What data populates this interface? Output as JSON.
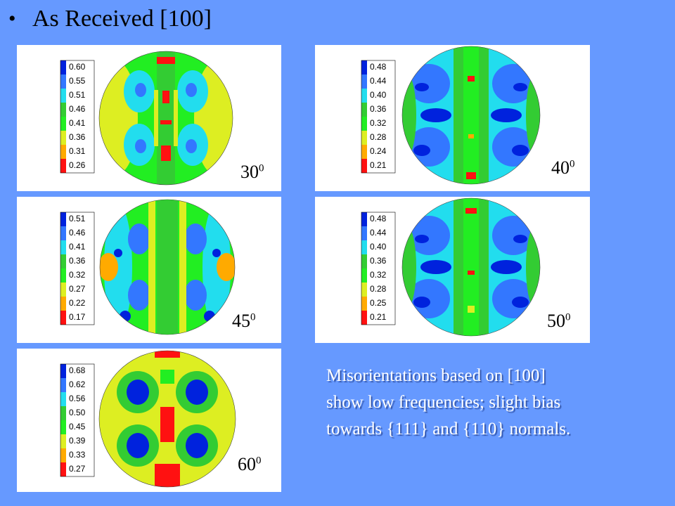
{
  "slide": {
    "bullet": "•",
    "title": "As Received [100]",
    "caption_lines": [
      "Misorientations based on [100]",
      "show low frequencies; slight bias",
      "towards {111} and {110} normals."
    ]
  },
  "colors": {
    "background": "#6699ff",
    "scale": [
      "#0022dd",
      "#3377ff",
      "#22ddee",
      "#33cc33",
      "#22ee22",
      "#ddee22",
      "#ffaa00",
      "#ff1111"
    ]
  },
  "plots": [
    {
      "id": "p30",
      "angle": "30",
      "sup": "0",
      "legend": [
        "0.60",
        "0.55",
        "0.51",
        "0.46",
        "0.41",
        "0.36",
        "0.31",
        "0.26"
      ]
    },
    {
      "id": "p40",
      "angle": "40",
      "sup": "0",
      "legend": [
        "0.48",
        "0.44",
        "0.40",
        "0.36",
        "0.32",
        "0.28",
        "0.24",
        "0.21"
      ]
    },
    {
      "id": "p45",
      "angle": "45",
      "sup": "0",
      "legend": [
        "0.51",
        "0.46",
        "0.41",
        "0.36",
        "0.32",
        "0.27",
        "0.22",
        "0.17"
      ]
    },
    {
      "id": "p50",
      "angle": "50",
      "sup": "0",
      "legend": [
        "0.48",
        "0.44",
        "0.40",
        "0.36",
        "0.32",
        "0.28",
        "0.25",
        "0.21"
      ]
    },
    {
      "id": "p60",
      "angle": "60",
      "sup": "0",
      "legend": [
        "0.68",
        "0.62",
        "0.56",
        "0.50",
        "0.45",
        "0.39",
        "0.33",
        "0.27"
      ]
    }
  ]
}
